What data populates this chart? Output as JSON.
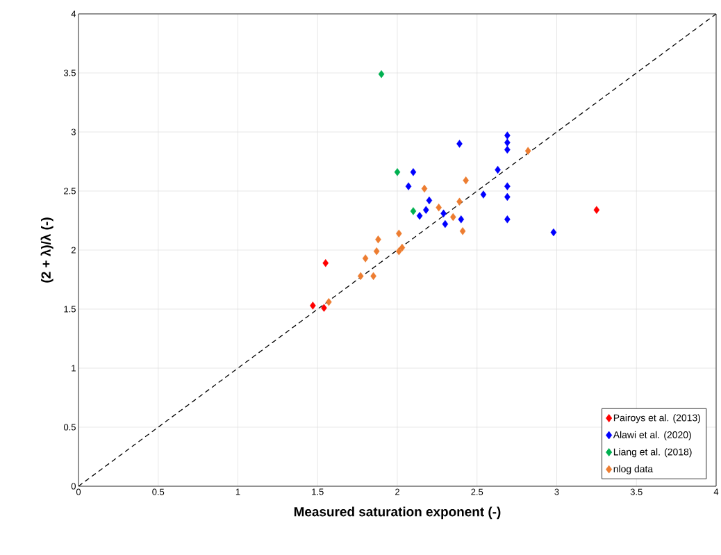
{
  "chart_data": {
    "type": "scatter",
    "xlabel": "Measured saturation exponent (-)",
    "ylabel": "(2 + λ)/λ (-)",
    "xlim": [
      0,
      4
    ],
    "ylim": [
      0,
      4
    ],
    "xticks": [
      0,
      0.5,
      1,
      1.5,
      2,
      2.5,
      3,
      3.5,
      4
    ],
    "yticks": [
      0,
      0.5,
      1,
      1.5,
      2,
      2.5,
      3,
      3.5,
      4
    ],
    "grid": true,
    "legend": "bottom right",
    "marker": "diamond",
    "series": [
      {
        "name": "Pairoys et al. (2013)",
        "color": "#ff0000",
        "x": [
          1.47,
          1.55,
          1.54,
          3.25
        ],
        "values": [
          1.53,
          1.89,
          1.51,
          2.34
        ]
      },
      {
        "name": "Alawi et al. (2020)",
        "color": "#0000ff",
        "x": [
          2.69,
          2.69,
          2.69,
          2.39,
          2.63,
          2.69,
          2.69,
          2.54,
          2.69,
          2.98,
          2.1,
          2.07,
          2.2,
          2.18,
          2.14,
          2.29,
          2.3,
          2.4
        ],
        "values": [
          2.97,
          2.91,
          2.85,
          2.9,
          2.68,
          2.54,
          2.45,
          2.47,
          2.26,
          2.15,
          2.66,
          2.54,
          2.42,
          2.34,
          2.29,
          2.31,
          2.22,
          2.26
        ]
      },
      {
        "name": "Liang et al. (2018)",
        "color": "#00b050",
        "x": [
          1.9,
          2.0,
          2.1
        ],
        "values": [
          3.49,
          2.66,
          2.33
        ]
      },
      {
        "name": "nlog data",
        "color": "#ed7d31",
        "x": [
          2.17,
          2.43,
          2.82,
          2.39,
          2.26,
          2.35,
          2.41,
          2.01,
          1.88,
          1.87,
          1.8,
          2.01,
          2.03,
          1.77,
          1.85,
          1.57
        ],
        "values": [
          2.52,
          2.59,
          2.84,
          2.41,
          2.36,
          2.28,
          2.16,
          2.14,
          2.09,
          1.99,
          1.93,
          1.99,
          2.02,
          1.78,
          1.78,
          1.56
        ]
      },
      {
        "type": "line",
        "color": "#000000",
        "line_style": "dashed",
        "marker": "none",
        "x": [
          0,
          4
        ],
        "values": [
          0,
          4
        ]
      }
    ]
  }
}
